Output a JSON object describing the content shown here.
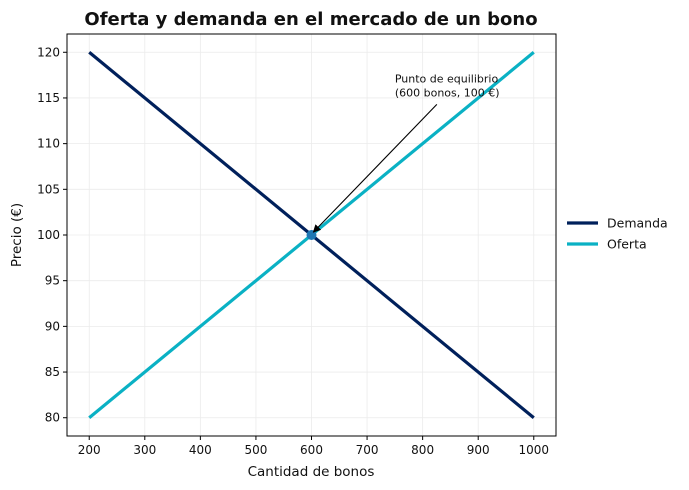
{
  "chart_data": {
    "type": "line",
    "title": "Oferta y demanda en el mercado de un bono",
    "xlabel": "Cantidad de bonos",
    "ylabel": "Precio (€)",
    "xlim": [
      160,
      1040
    ],
    "ylim": [
      78,
      122
    ],
    "xticks": [
      200,
      300,
      400,
      500,
      600,
      700,
      800,
      900,
      1000
    ],
    "yticks": [
      80,
      85,
      90,
      95,
      100,
      105,
      110,
      115,
      120
    ],
    "grid": true,
    "legend_position": "right-outside",
    "series": [
      {
        "name": "Demanda",
        "color": "#00205b",
        "x": [
          200,
          1000
        ],
        "y": [
          120,
          80
        ]
      },
      {
        "name": "Oferta",
        "color": "#0ab1c4",
        "x": [
          200,
          1000
        ],
        "y": [
          80,
          120
        ]
      }
    ],
    "equilibrium": {
      "x": 600,
      "y": 100,
      "color": "#1f77b4"
    },
    "annotation": {
      "lines": [
        "Punto de equilibrio",
        "(600 bonos, 100 €)"
      ],
      "text_x": 750,
      "text_y": 116.7,
      "point_x": 600,
      "point_y": 100
    }
  }
}
